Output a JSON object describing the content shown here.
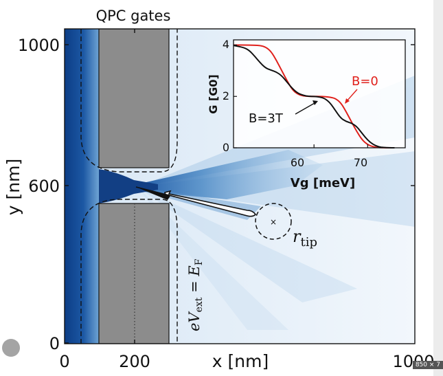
{
  "chart_data": [
    {
      "type": "heatmap",
      "title": "QPC gates",
      "xlabel": "x [nm]",
      "ylabel": "y [nm]",
      "xlim": [
        0,
        1000
      ],
      "ylim": [
        0,
        1000
      ],
      "x_ticks": [
        "0",
        "200",
        "1000"
      ],
      "y_ticks": [
        "0",
        "600",
        "1000"
      ],
      "x_tick_values": [
        0,
        200,
        1000
      ],
      "y_tick_values": [
        0,
        600,
        1000
      ],
      "gates": [
        {
          "name": "upper gate",
          "x": [
            100,
            300
          ],
          "y": [
            650,
            1000
          ]
        },
        {
          "name": "lower gate",
          "x": [
            100,
            300
          ],
          "y": [
            0,
            550
          ]
        }
      ],
      "dotted_line_x": 200,
      "tip": {
        "x": 600,
        "y": 555
      },
      "annotations": {
        "potential_label": "eV_ext = E_F",
        "tip_label": "r_tip"
      },
      "colormap": "Blues"
    },
    {
      "type": "line",
      "xlabel": "Vg [meV]",
      "ylabel": "G [G0]",
      "xlim": [
        45,
        77
      ],
      "ylim": [
        0,
        4.2
      ],
      "x_ticks": [
        "60",
        "70"
      ],
      "y_ticks": [
        "0",
        "2",
        "4"
      ],
      "x_tick_values": [
        60,
        70
      ],
      "y_tick_values": [
        0,
        2,
        4
      ],
      "series": [
        {
          "name": "B=0",
          "color": "#e0201b",
          "x": [
            45,
            48,
            50,
            51,
            52,
            53,
            54,
            55,
            56,
            57,
            58,
            59,
            60,
            61,
            62,
            63,
            64,
            65,
            66,
            67,
            68,
            69,
            70,
            71,
            72,
            73,
            74,
            75
          ],
          "values": [
            4.0,
            4.0,
            3.98,
            3.92,
            3.75,
            3.4,
            3.0,
            2.6,
            2.25,
            2.08,
            2.02,
            2.0,
            2.0,
            2.0,
            1.99,
            1.97,
            1.92,
            1.75,
            1.4,
            1.0,
            0.62,
            0.3,
            0.12,
            0.04,
            0.01,
            0.0,
            0.0,
            0.0
          ]
        },
        {
          "name": "B=3T",
          "color": "#111111",
          "x": [
            45,
            47,
            48,
            49,
            50,
            51,
            52,
            53,
            54,
            55,
            56,
            57,
            58,
            59,
            60,
            61,
            62,
            63,
            64,
            65,
            66,
            67,
            68,
            69,
            70,
            71,
            72,
            73,
            74,
            75
          ],
          "values": [
            3.98,
            3.9,
            3.78,
            3.55,
            3.3,
            3.1,
            3.02,
            2.95,
            2.8,
            2.55,
            2.3,
            2.12,
            2.04,
            2.0,
            2.0,
            1.98,
            1.92,
            1.75,
            1.45,
            1.15,
            1.02,
            0.96,
            0.82,
            0.55,
            0.3,
            0.13,
            0.04,
            0.01,
            0.0,
            0.0
          ]
        }
      ],
      "annotations": [
        {
          "text": "B=0",
          "color": "#e0201b"
        },
        {
          "text": "B=3T",
          "color": "#111111"
        }
      ]
    }
  ],
  "ui": {
    "badge_text": "850 × 7"
  }
}
